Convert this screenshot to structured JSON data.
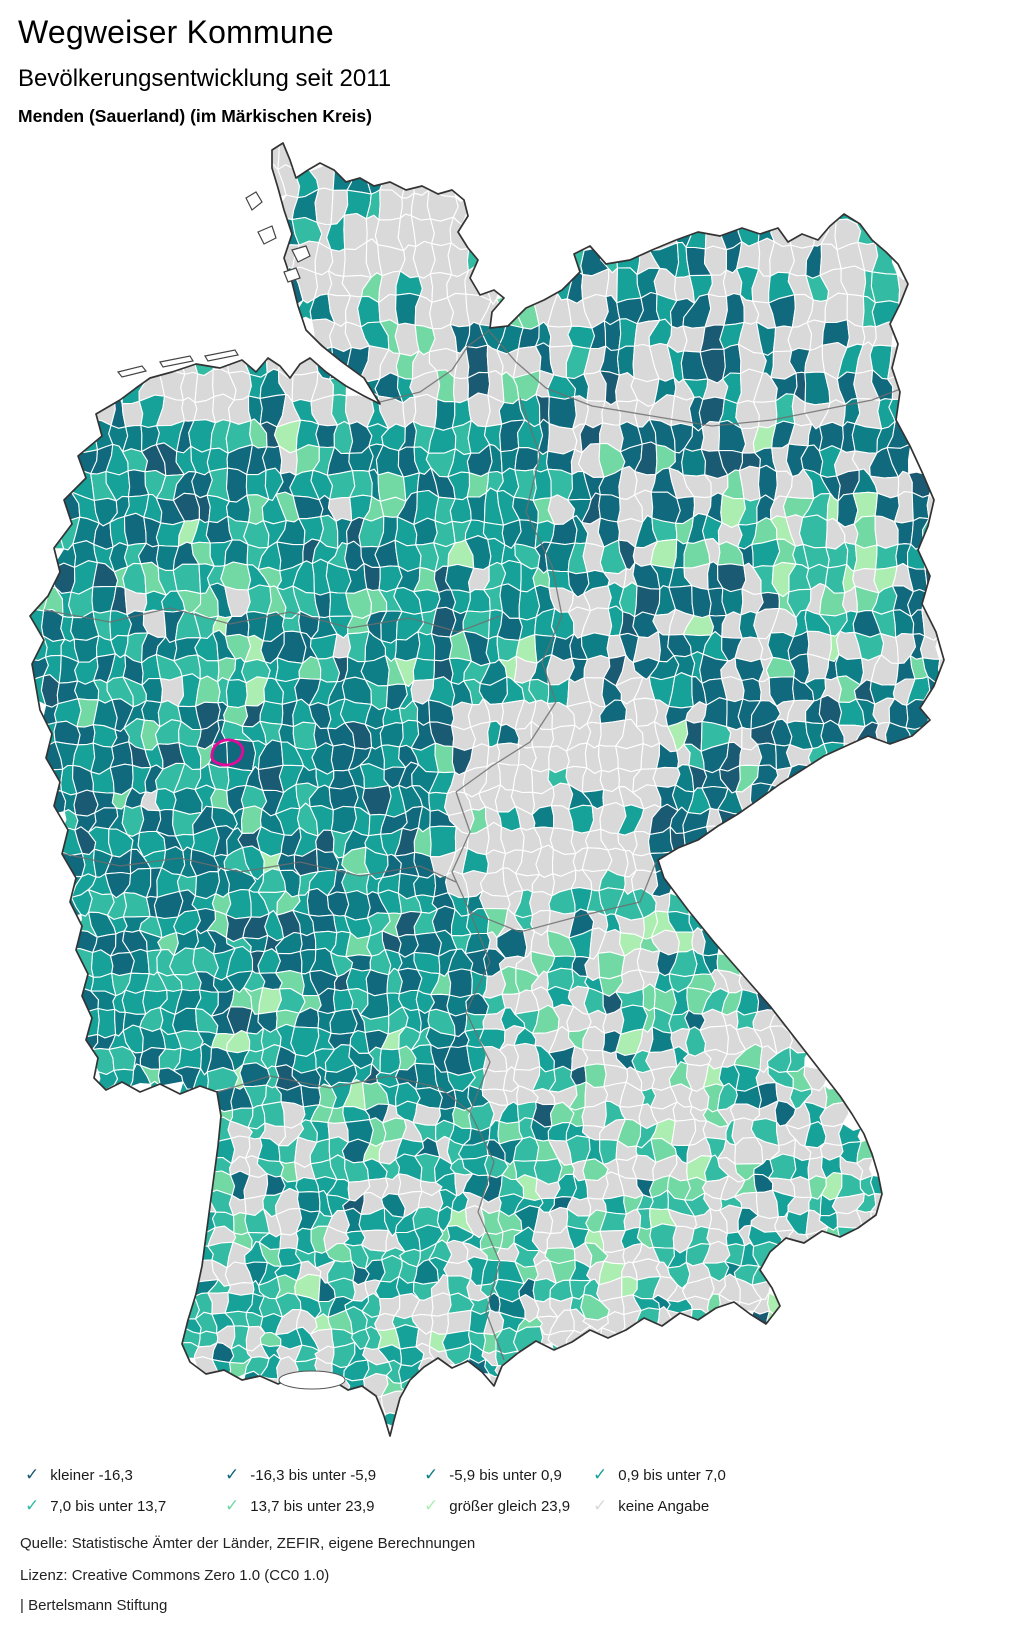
{
  "header": {
    "title": "Wegweiser Kommune",
    "subtitle": "Bevölkerungsentwicklung seit 2011",
    "location": "Menden (Sauerland) (im Märkischen Kreis)"
  },
  "map": {
    "country": "Deutschland",
    "highlighted_municipality": "Menden (Sauerland)",
    "highlight_color": "#e10a9b",
    "outline_color": "#333333",
    "state_border_color": "#6e6e6e",
    "cell_border_color": "#ffffff",
    "sea_color": "#ffffff"
  },
  "legend": {
    "items": [
      {
        "label": "kleiner -16,3",
        "color": "#1a5a72",
        "checked": true
      },
      {
        "label": "-16,3 bis unter -5,9",
        "color": "#10697c",
        "checked": true
      },
      {
        "label": "-5,9 bis unter 0,9",
        "color": "#0e7e87",
        "checked": true
      },
      {
        "label": "0,9 bis unter 7,0",
        "color": "#16a199",
        "checked": true
      },
      {
        "label": "7,0 bis unter 13,7",
        "color": "#34bba3",
        "checked": true
      },
      {
        "label": "13,7 bis unter 23,9",
        "color": "#72d9a5",
        "checked": true
      },
      {
        "label": "größer gleich 23,9",
        "color": "#aceeb2",
        "checked": true
      },
      {
        "label": "keine Angabe",
        "color": "#d9d9d9",
        "checked": true
      }
    ],
    "check_glyph": "✓"
  },
  "footer": {
    "source": "Quelle: Statistische Ämter der Länder, ZEFIR, eigene Berechnungen",
    "license": "Lizenz: Creative Commons Zero 1.0 (CC0 1.0)",
    "attribution": "| Bertelsmann Stiftung"
  }
}
